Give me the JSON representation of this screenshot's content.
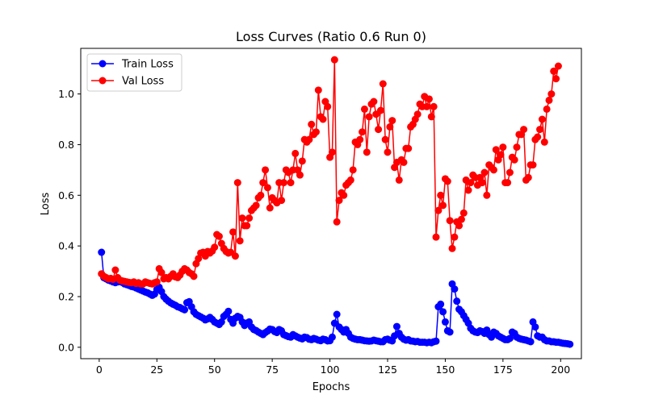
{
  "chart_data": {
    "type": "line",
    "title": "Loss Curves (Ratio 0.6 Run 0)",
    "xlabel": "Epochs",
    "ylabel": "Loss",
    "xlim": [
      -8,
      209
    ],
    "ylim": [
      -0.045,
      1.18
    ],
    "xticks": [
      0,
      25,
      50,
      75,
      100,
      125,
      150,
      175,
      200
    ],
    "yticks": [
      0.0,
      0.2,
      0.4,
      0.6,
      0.8,
      1.0
    ],
    "ytick_labels": [
      "0.0",
      "0.2",
      "0.4",
      "0.6",
      "0.8",
      "1.0"
    ],
    "grid": false,
    "legend": "top-left",
    "series": [
      {
        "name": "Train Loss",
        "color": "#0000ff",
        "marker": "circle",
        "values": [
          0.375,
          0.275,
          0.27,
          0.265,
          0.262,
          0.258,
          0.255,
          0.258,
          0.26,
          0.256,
          0.25,
          0.247,
          0.244,
          0.24,
          0.238,
          0.234,
          0.23,
          0.226,
          0.222,
          0.218,
          0.215,
          0.21,
          0.205,
          0.21,
          0.228,
          0.237,
          0.22,
          0.2,
          0.19,
          0.182,
          0.175,
          0.17,
          0.166,
          0.16,
          0.157,
          0.152,
          0.148,
          0.176,
          0.18,
          0.16,
          0.14,
          0.13,
          0.125,
          0.12,
          0.115,
          0.108,
          0.112,
          0.118,
          0.11,
          0.1,
          0.095,
          0.09,
          0.1,
          0.122,
          0.13,
          0.142,
          0.11,
          0.095,
          0.115,
          0.122,
          0.118,
          0.1,
          0.086,
          0.096,
          0.1,
          0.08,
          0.07,
          0.066,
          0.06,
          0.055,
          0.05,
          0.058,
          0.064,
          0.072,
          0.07,
          0.062,
          0.058,
          0.07,
          0.065,
          0.05,
          0.046,
          0.042,
          0.04,
          0.05,
          0.045,
          0.04,
          0.036,
          0.033,
          0.04,
          0.038,
          0.032,
          0.03,
          0.035,
          0.032,
          0.028,
          0.026,
          0.032,
          0.03,
          0.025,
          0.026,
          0.04,
          0.095,
          0.13,
          0.08,
          0.07,
          0.06,
          0.07,
          0.055,
          0.04,
          0.035,
          0.032,
          0.03,
          0.03,
          0.028,
          0.026,
          0.025,
          0.024,
          0.025,
          0.028,
          0.026,
          0.024,
          0.022,
          0.022,
          0.03,
          0.032,
          0.028,
          0.025,
          0.045,
          0.082,
          0.055,
          0.04,
          0.032,
          0.028,
          0.03,
          0.025,
          0.024,
          0.022,
          0.023,
          0.02,
          0.02,
          0.02,
          0.018,
          0.02,
          0.018,
          0.022,
          0.024,
          0.16,
          0.17,
          0.14,
          0.1,
          0.065,
          0.06,
          0.25,
          0.23,
          0.182,
          0.15,
          0.14,
          0.125,
          0.11,
          0.095,
          0.075,
          0.065,
          0.06,
          0.058,
          0.065,
          0.062,
          0.055,
          0.068,
          0.05,
          0.04,
          0.06,
          0.055,
          0.045,
          0.04,
          0.035,
          0.03,
          0.03,
          0.035,
          0.06,
          0.055,
          0.04,
          0.035,
          0.032,
          0.03,
          0.028,
          0.025,
          0.022,
          0.1,
          0.08,
          0.045,
          0.04,
          0.04,
          0.03,
          0.025,
          0.025,
          0.022,
          0.022,
          0.02,
          0.02,
          0.018,
          0.016,
          0.015,
          0.014,
          0.012
        ]
      },
      {
        "name": "Val Loss",
        "color": "#ff0000",
        "marker": "circle",
        "values": [
          0.29,
          0.28,
          0.275,
          0.27,
          0.272,
          0.268,
          0.305,
          0.275,
          0.265,
          0.262,
          0.26,
          0.258,
          0.256,
          0.255,
          0.258,
          0.252,
          0.255,
          0.25,
          0.25,
          0.258,
          0.255,
          0.252,
          0.25,
          0.255,
          0.258,
          0.31,
          0.295,
          0.27,
          0.275,
          0.27,
          0.28,
          0.29,
          0.278,
          0.275,
          0.285,
          0.3,
          0.31,
          0.305,
          0.295,
          0.29,
          0.28,
          0.33,
          0.35,
          0.372,
          0.375,
          0.36,
          0.378,
          0.372,
          0.38,
          0.395,
          0.445,
          0.438,
          0.41,
          0.39,
          0.378,
          0.372,
          0.375,
          0.455,
          0.36,
          0.65,
          0.42,
          0.51,
          0.48,
          0.48,
          0.51,
          0.54,
          0.55,
          0.56,
          0.59,
          0.6,
          0.65,
          0.7,
          0.63,
          0.55,
          0.59,
          0.58,
          0.57,
          0.65,
          0.58,
          0.65,
          0.7,
          0.69,
          0.65,
          0.7,
          0.765,
          0.7,
          0.68,
          0.735,
          0.82,
          0.81,
          0.82,
          0.88,
          0.84,
          0.85,
          1.015,
          0.91,
          0.9,
          0.97,
          0.95,
          0.75,
          0.77,
          1.135,
          0.495,
          0.58,
          0.61,
          0.6,
          0.64,
          0.65,
          0.66,
          0.7,
          0.81,
          0.8,
          0.82,
          0.85,
          0.94,
          0.77,
          0.91,
          0.96,
          0.97,
          0.92,
          0.86,
          0.935,
          1.04,
          0.82,
          0.77,
          0.87,
          0.895,
          0.71,
          0.73,
          0.66,
          0.74,
          0.73,
          0.785,
          0.785,
          0.87,
          0.88,
          0.9,
          0.92,
          0.96,
          0.95,
          0.99,
          0.95,
          0.98,
          0.91,
          0.95,
          0.435,
          0.54,
          0.6,
          0.56,
          0.665,
          0.655,
          0.5,
          0.39,
          0.435,
          0.495,
          0.48,
          0.505,
          0.53,
          0.66,
          0.62,
          0.65,
          0.68,
          0.67,
          0.64,
          0.67,
          0.65,
          0.69,
          0.6,
          0.72,
          0.71,
          0.7,
          0.78,
          0.74,
          0.76,
          0.79,
          0.65,
          0.65,
          0.69,
          0.75,
          0.74,
          0.79,
          0.84,
          0.84,
          0.86,
          0.66,
          0.67,
          0.72,
          0.72,
          0.82,
          0.83,
          0.86,
          0.9,
          0.81,
          0.94,
          0.975,
          1.0,
          1.09,
          1.06,
          1.11
        ]
      }
    ]
  }
}
